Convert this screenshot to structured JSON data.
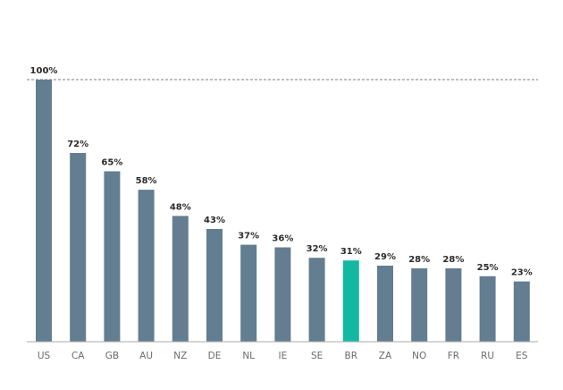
{
  "chart_data": {
    "type": "bar",
    "categories": [
      "US",
      "CA",
      "GB",
      "AU",
      "NZ",
      "DE",
      "NL",
      "IE",
      "SE",
      "BR",
      "ZA",
      "NO",
      "FR",
      "RU",
      "ES"
    ],
    "values": [
      100,
      72,
      65,
      58,
      48,
      43,
      37,
      36,
      32,
      31,
      29,
      28,
      28,
      25,
      23
    ],
    "data_labels": [
      "100%",
      "72%",
      "65%",
      "58%",
      "48%",
      "43%",
      "37%",
      "36%",
      "32%",
      "31%",
      "29%",
      "28%",
      "28%",
      "25%",
      "23%"
    ],
    "highlight_category": "BR",
    "title": "",
    "xlabel": "",
    "ylabel": "",
    "ylim": [
      0,
      100
    ],
    "reference_line_value": 100,
    "grid": false,
    "legend": "none",
    "colors": {
      "bar": "#637d91",
      "highlight": "#14b8a0",
      "axis": "#a9a9a9",
      "reference_line": "#7f7f7f"
    }
  }
}
